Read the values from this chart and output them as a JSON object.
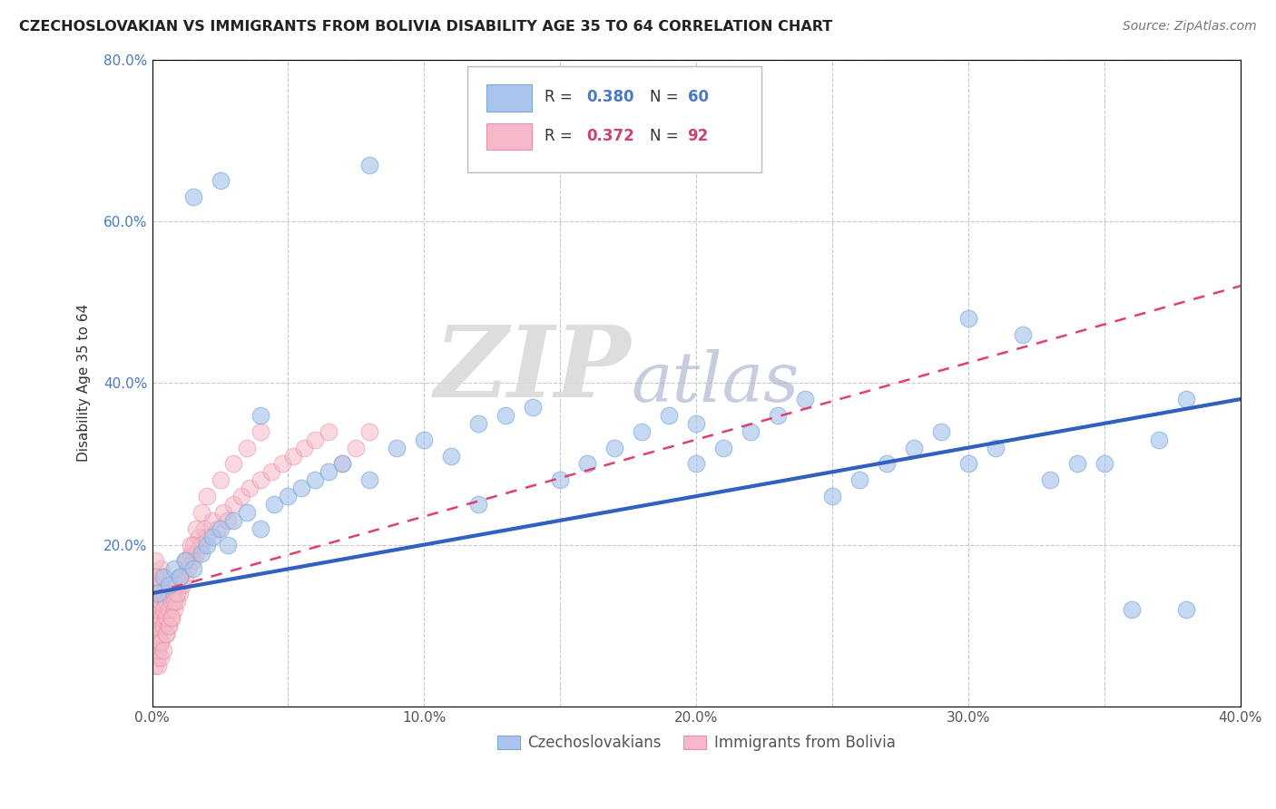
{
  "title": "CZECHOSLOVAKIAN VS IMMIGRANTS FROM BOLIVIA DISABILITY AGE 35 TO 64 CORRELATION CHART",
  "source": "Source: ZipAtlas.com",
  "ylabel": "Disability Age 35 to 64",
  "xlim": [
    0.0,
    0.4
  ],
  "ylim": [
    0.0,
    0.8
  ],
  "xticks": [
    0.0,
    0.05,
    0.1,
    0.15,
    0.2,
    0.25,
    0.3,
    0.35,
    0.4
  ],
  "xtick_labels": [
    "0.0%",
    "",
    "10.0%",
    "",
    "20.0%",
    "",
    "30.0%",
    "",
    "40.0%"
  ],
  "yticks": [
    0.0,
    0.2,
    0.4,
    0.6,
    0.8
  ],
  "ytick_labels": [
    "",
    "20.0%",
    "40.0%",
    "60.0%",
    "80.0%"
  ],
  "blue_fill": "#aac4ed",
  "blue_edge": "#7aaad4",
  "pink_fill": "#f5b8c8",
  "pink_edge": "#e890a8",
  "blue_line_color": "#3060c0",
  "pink_line_color": "#e04070",
  "blue_r": 0.38,
  "blue_n": 60,
  "pink_r": 0.372,
  "pink_n": 92,
  "blue_line_x0": 0.0,
  "blue_line_y0": 0.14,
  "blue_line_x1": 0.4,
  "blue_line_y1": 0.38,
  "pink_line_x0": 0.0,
  "pink_line_y0": 0.14,
  "pink_line_x1": 0.4,
  "pink_line_y1": 0.52,
  "watermark_zip": "ZIP",
  "watermark_atlas": "atlas",
  "background_color": "#ffffff",
  "grid_color": "#c8c8c8",
  "blue_scatter_x": [
    0.002,
    0.004,
    0.006,
    0.008,
    0.01,
    0.012,
    0.015,
    0.018,
    0.02,
    0.022,
    0.025,
    0.028,
    0.03,
    0.035,
    0.04,
    0.045,
    0.05,
    0.055,
    0.06,
    0.065,
    0.07,
    0.08,
    0.09,
    0.1,
    0.11,
    0.12,
    0.13,
    0.14,
    0.15,
    0.16,
    0.17,
    0.18,
    0.19,
    0.2,
    0.21,
    0.22,
    0.23,
    0.24,
    0.25,
    0.26,
    0.27,
    0.28,
    0.29,
    0.3,
    0.31,
    0.32,
    0.33,
    0.34,
    0.35,
    0.36,
    0.37,
    0.38,
    0.015,
    0.025,
    0.04,
    0.08,
    0.12,
    0.2,
    0.3,
    0.38
  ],
  "blue_scatter_y": [
    0.14,
    0.16,
    0.15,
    0.17,
    0.16,
    0.18,
    0.17,
    0.19,
    0.2,
    0.21,
    0.22,
    0.2,
    0.23,
    0.24,
    0.22,
    0.25,
    0.26,
    0.27,
    0.28,
    0.29,
    0.3,
    0.28,
    0.32,
    0.33,
    0.31,
    0.35,
    0.36,
    0.37,
    0.28,
    0.3,
    0.32,
    0.34,
    0.36,
    0.3,
    0.32,
    0.34,
    0.36,
    0.38,
    0.26,
    0.28,
    0.3,
    0.32,
    0.34,
    0.3,
    0.32,
    0.46,
    0.28,
    0.3,
    0.3,
    0.12,
    0.33,
    0.38,
    0.63,
    0.65,
    0.36,
    0.67,
    0.25,
    0.35,
    0.48,
    0.12
  ],
  "pink_scatter_x": [
    0.001,
    0.001,
    0.001,
    0.001,
    0.001,
    0.001,
    0.001,
    0.001,
    0.001,
    0.001,
    0.002,
    0.002,
    0.002,
    0.002,
    0.002,
    0.002,
    0.002,
    0.002,
    0.003,
    0.003,
    0.003,
    0.003,
    0.003,
    0.004,
    0.004,
    0.004,
    0.004,
    0.005,
    0.005,
    0.005,
    0.006,
    0.006,
    0.006,
    0.007,
    0.007,
    0.008,
    0.008,
    0.009,
    0.009,
    0.01,
    0.01,
    0.011,
    0.012,
    0.012,
    0.013,
    0.014,
    0.015,
    0.015,
    0.016,
    0.017,
    0.018,
    0.019,
    0.02,
    0.022,
    0.024,
    0.026,
    0.028,
    0.03,
    0.033,
    0.036,
    0.04,
    0.044,
    0.048,
    0.052,
    0.056,
    0.06,
    0.065,
    0.07,
    0.075,
    0.08,
    0.001,
    0.001,
    0.002,
    0.002,
    0.003,
    0.003,
    0.004,
    0.005,
    0.006,
    0.007,
    0.008,
    0.009,
    0.01,
    0.012,
    0.014,
    0.016,
    0.018,
    0.02,
    0.025,
    0.03,
    0.035,
    0.04
  ],
  "pink_scatter_y": [
    0.05,
    0.07,
    0.09,
    0.11,
    0.13,
    0.15,
    0.08,
    0.1,
    0.12,
    0.14,
    0.06,
    0.08,
    0.1,
    0.12,
    0.14,
    0.16,
    0.07,
    0.09,
    0.11,
    0.13,
    0.15,
    0.17,
    0.08,
    0.1,
    0.12,
    0.14,
    0.16,
    0.09,
    0.11,
    0.13,
    0.1,
    0.12,
    0.14,
    0.11,
    0.13,
    0.12,
    0.14,
    0.13,
    0.15,
    0.14,
    0.16,
    0.15,
    0.16,
    0.18,
    0.17,
    0.19,
    0.18,
    0.2,
    0.19,
    0.21,
    0.2,
    0.22,
    0.21,
    0.23,
    0.22,
    0.24,
    0.23,
    0.25,
    0.26,
    0.27,
    0.28,
    0.29,
    0.3,
    0.31,
    0.32,
    0.33,
    0.34,
    0.3,
    0.32,
    0.34,
    0.16,
    0.18,
    0.05,
    0.07,
    0.06,
    0.08,
    0.07,
    0.09,
    0.1,
    0.11,
    0.13,
    0.14,
    0.16,
    0.18,
    0.2,
    0.22,
    0.24,
    0.26,
    0.28,
    0.3,
    0.32,
    0.34
  ]
}
